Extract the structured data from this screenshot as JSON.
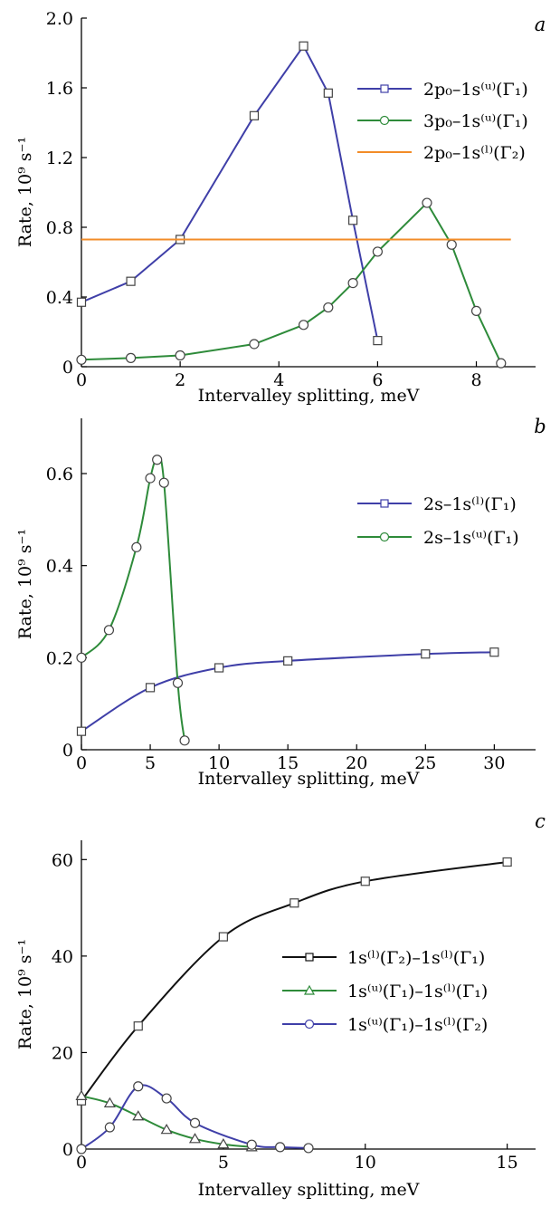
{
  "chart_data": [
    {
      "type": "line",
      "panel": "a",
      "xlabel": "Intervalley splitting, meV",
      "ylabel": "Rate, 10⁹ s⁻¹",
      "xlim": [
        0,
        9.2
      ],
      "ylim": [
        0,
        2.0
      ],
      "xticks": [
        0,
        2,
        4,
        6,
        8
      ],
      "yticks": [
        0,
        0.4,
        0.8,
        1.2,
        1.6,
        2.0
      ],
      "ytick_labels": [
        "0",
        "0.4",
        "0.8",
        "1.2",
        "1.6",
        "2.0"
      ],
      "legend_position": "top-right",
      "series": [
        {
          "name": "2p₀–1s⁽ᵘ⁾(Γ₁)",
          "color": "#3f3fa8",
          "marker": "square",
          "x": [
            0,
            1,
            2,
            3.5,
            4.5,
            5,
            5.5,
            6
          ],
          "y": [
            0.37,
            0.49,
            0.73,
            1.44,
            1.84,
            1.57,
            0.84,
            0.15
          ]
        },
        {
          "name": "3p₀–1s⁽ᵘ⁾(Γ₁)",
          "color": "#2e8b3a",
          "marker": "circle",
          "x": [
            0,
            1,
            2,
            3.5,
            4.5,
            5,
            5.5,
            6,
            7,
            7.5,
            8,
            8.5
          ],
          "y": [
            0.04,
            0.05,
            0.065,
            0.13,
            0.24,
            0.34,
            0.48,
            0.66,
            0.94,
            0.7,
            0.32,
            0.02
          ]
        },
        {
          "name": "2p₀–1s⁽ˡ⁾(Γ₂)",
          "color": "#f28c28",
          "marker": "none",
          "x": [
            0,
            8.7
          ],
          "y": [
            0.73,
            0.73
          ]
        }
      ]
    },
    {
      "type": "line",
      "panel": "b",
      "xlabel": "Intervalley splitting, meV",
      "ylabel": "Rate, 10⁹ s⁻¹",
      "xlim": [
        0,
        33
      ],
      "ylim": [
        0,
        0.72
      ],
      "xticks": [
        0,
        5,
        10,
        15,
        20,
        25,
        30
      ],
      "yticks": [
        0,
        0.2,
        0.4,
        0.6
      ],
      "ytick_labels": [
        "0",
        "0.2",
        "0.4",
        "0.6"
      ],
      "legend_position": "top-right",
      "series": [
        {
          "name": "2s–1s⁽ˡ⁾(Γ₁)",
          "color": "#3f3fa8",
          "marker": "square",
          "x": [
            0,
            5,
            10,
            15,
            25,
            30
          ],
          "y": [
            0.04,
            0.135,
            0.178,
            0.193,
            0.208,
            0.212
          ]
        },
        {
          "name": "2s–1s⁽ᵘ⁾(Γ₁)",
          "color": "#2e8b3a",
          "marker": "circle",
          "x": [
            0,
            2,
            4,
            5,
            5.5,
            6,
            7,
            7.5
          ],
          "y": [
            0.2,
            0.26,
            0.44,
            0.59,
            0.63,
            0.58,
            0.145,
            0.02
          ]
        }
      ]
    },
    {
      "type": "line",
      "panel": "c",
      "xlabel": "Intervalley splitting, meV",
      "ylabel": "Rate, 10⁹ s⁻¹",
      "xlim": [
        0,
        16
      ],
      "ylim": [
        0,
        64
      ],
      "xticks": [
        0,
        5,
        10,
        15
      ],
      "yticks": [
        0,
        20,
        40,
        60
      ],
      "ytick_labels": [
        "0",
        "20",
        "40",
        "60"
      ],
      "legend_position": "center-right",
      "series": [
        {
          "name": "1s⁽ˡ⁾(Γ₂)–1s⁽ˡ⁾(Γ₁)",
          "color": "#111111",
          "marker": "square",
          "x": [
            0,
            2,
            5,
            7.5,
            10,
            15
          ],
          "y": [
            10,
            25.5,
            44,
            51,
            55.5,
            59.5
          ]
        },
        {
          "name": "1s⁽ᵘ⁾(Γ₁)–1s⁽ˡ⁾(Γ₁)",
          "color": "#2e8b3a",
          "marker": "triangle",
          "x": [
            0,
            1,
            2,
            3,
            4,
            5,
            6
          ],
          "y": [
            11,
            9.5,
            6.8,
            4,
            2.1,
            1.0,
            0.4
          ]
        },
        {
          "name": "1s⁽ᵘ⁾(Γ₁)–1s⁽ˡ⁾(Γ₂)",
          "color": "#3f3fa8",
          "marker": "circle",
          "x": [
            0,
            1,
            2,
            3,
            4,
            6,
            7,
            8
          ],
          "y": [
            0,
            4.5,
            13,
            10.5,
            5.4,
            0.9,
            0.4,
            0.2
          ]
        }
      ]
    }
  ]
}
